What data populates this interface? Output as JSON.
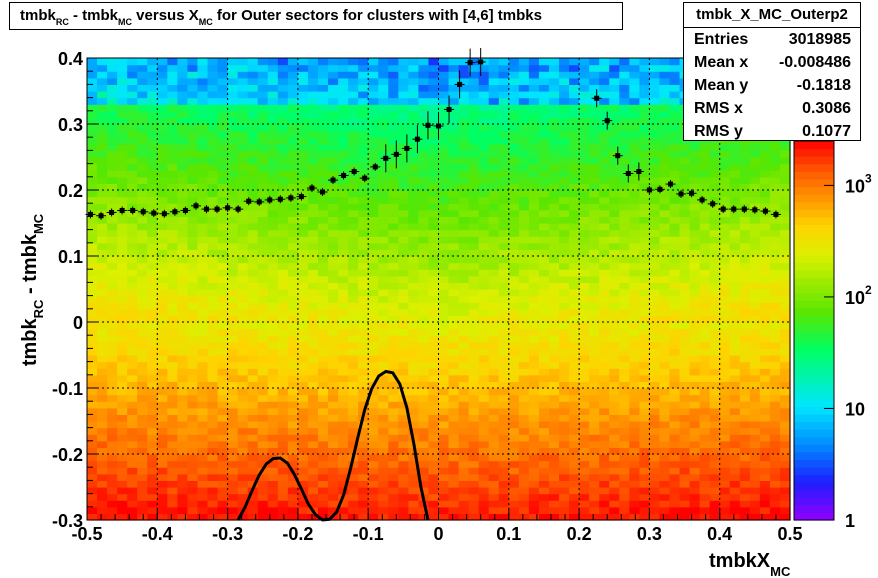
{
  "chart_data": {
    "type": "heatmap",
    "title": {
      "p1": "tmbk",
      "s1": "RC",
      "p2": " - tmbk",
      "s2": "MC",
      "p3": " versus X",
      "s3": "MC",
      "p4": " for Outer sectors for clusters with [4,6] tmbks"
    },
    "xlabel": {
      "main": "tmbkX",
      "sub": "MC"
    },
    "ylabel": {
      "p1": "tmbk",
      "s1": "RC",
      "p2": " - tmbk",
      "s2": "MC"
    },
    "xlim": [
      -0.5,
      0.5
    ],
    "ylim": [
      -0.3,
      0.4
    ],
    "x_ticks": [
      "-0.5",
      "-0.4",
      "-0.3",
      "-0.2",
      "-0.1",
      "0",
      "0.1",
      "0.2",
      "0.3",
      "0.4",
      "0.5"
    ],
    "y_ticks": [
      "-0.3",
      "-0.2",
      "-0.1",
      "0",
      "0.1",
      "0.2",
      "0.3",
      "0.4"
    ],
    "grid": true,
    "z_scale": "log",
    "colorbar_ticks": [
      {
        "value": 1,
        "label": "1"
      },
      {
        "value": 10,
        "label": "10"
      },
      {
        "value": 100,
        "label": "10",
        "sup": "2"
      },
      {
        "value": 1000,
        "label": "10",
        "sup": "3"
      }
    ],
    "profile_points": [
      [
        -0.495,
        0.163
      ],
      [
        -0.48,
        0.161
      ],
      [
        -0.465,
        0.166
      ],
      [
        -0.45,
        0.169
      ],
      [
        -0.435,
        0.169
      ],
      [
        -0.42,
        0.167
      ],
      [
        -0.405,
        0.165
      ],
      [
        -0.39,
        0.164
      ],
      [
        -0.375,
        0.167
      ],
      [
        -0.36,
        0.169
      ],
      [
        -0.345,
        0.176
      ],
      [
        -0.33,
        0.171
      ],
      [
        -0.315,
        0.171
      ],
      [
        -0.3,
        0.173
      ],
      [
        -0.285,
        0.171
      ],
      [
        -0.27,
        0.183
      ],
      [
        -0.255,
        0.182
      ],
      [
        -0.24,
        0.185
      ],
      [
        -0.225,
        0.186
      ],
      [
        -0.21,
        0.188
      ],
      [
        -0.195,
        0.19
      ],
      [
        -0.18,
        0.203
      ],
      [
        -0.165,
        0.197
      ],
      [
        -0.15,
        0.215
      ],
      [
        -0.135,
        0.222
      ],
      [
        -0.12,
        0.228
      ],
      [
        -0.105,
        0.218
      ],
      [
        -0.09,
        0.235
      ],
      [
        -0.075,
        0.248
      ],
      [
        -0.06,
        0.254
      ],
      [
        -0.045,
        0.263
      ],
      [
        -0.03,
        0.277
      ],
      [
        -0.015,
        0.298
      ],
      [
        0.0,
        0.297
      ],
      [
        0.015,
        0.322
      ],
      [
        0.03,
        0.36
      ],
      [
        0.045,
        0.393
      ],
      [
        0.06,
        0.394
      ],
      [
        0.225,
        0.339
      ],
      [
        0.24,
        0.305
      ],
      [
        0.255,
        0.252
      ],
      [
        0.27,
        0.225
      ],
      [
        0.285,
        0.228
      ],
      [
        0.3,
        0.2
      ],
      [
        0.315,
        0.201
      ],
      [
        0.33,
        0.209
      ],
      [
        0.345,
        0.194
      ],
      [
        0.36,
        0.195
      ],
      [
        0.375,
        0.185
      ],
      [
        0.39,
        0.179
      ],
      [
        0.405,
        0.171
      ],
      [
        0.42,
        0.171
      ],
      [
        0.435,
        0.171
      ],
      [
        0.45,
        0.17
      ],
      [
        0.465,
        0.168
      ],
      [
        0.48,
        0.163
      ]
    ],
    "fit_curve": [
      [
        -0.285,
        -0.302
      ],
      [
        -0.275,
        -0.28
      ],
      [
        -0.265,
        -0.255
      ],
      [
        -0.255,
        -0.232
      ],
      [
        -0.245,
        -0.215
      ],
      [
        -0.235,
        -0.207
      ],
      [
        -0.225,
        -0.206
      ],
      [
        -0.215,
        -0.214
      ],
      [
        -0.205,
        -0.231
      ],
      [
        -0.195,
        -0.253
      ],
      [
        -0.185,
        -0.276
      ],
      [
        -0.175,
        -0.292
      ],
      [
        -0.165,
        -0.3
      ],
      [
        -0.155,
        -0.299
      ],
      [
        -0.145,
        -0.288
      ],
      [
        -0.135,
        -0.262
      ],
      [
        -0.125,
        -0.222
      ],
      [
        -0.115,
        -0.176
      ],
      [
        -0.105,
        -0.133
      ],
      [
        -0.095,
        -0.101
      ],
      [
        -0.085,
        -0.082
      ],
      [
        -0.075,
        -0.075
      ],
      [
        -0.065,
        -0.077
      ],
      [
        -0.055,
        -0.094
      ],
      [
        -0.045,
        -0.13
      ],
      [
        -0.035,
        -0.185
      ],
      [
        -0.025,
        -0.25
      ],
      [
        -0.015,
        -0.303
      ]
    ]
  },
  "stats_box": {
    "title": "tmbk_X_MC_Outerp2",
    "rows": [
      {
        "label": "Entries",
        "value": "3018985"
      },
      {
        "label": "Mean x",
        "value": "-0.008486"
      },
      {
        "label": "Mean y",
        "value": "-0.1818"
      },
      {
        "label": "RMS x",
        "value": "0.3086"
      },
      {
        "label": "RMS y",
        "value": "0.1077"
      }
    ]
  }
}
